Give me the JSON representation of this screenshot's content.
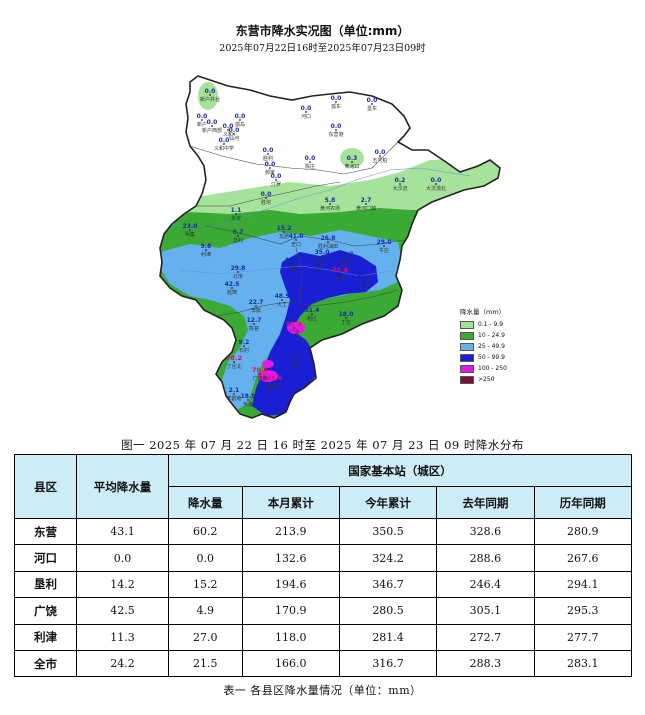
{
  "map": {
    "title": "东营市降水实况图（单位:mm）",
    "subtitle": "2025年07月22日16时至2025年07月23日09时",
    "stations": [
      {
        "value": "0.0",
        "name": "新户井台"
      },
      {
        "value": "0.0",
        "name": "新户"
      },
      {
        "value": "0.0",
        "name": "新户西部"
      },
      {
        "value": "0.0",
        "name": "义和"
      },
      {
        "value": "0.0",
        "name": "义和中学"
      },
      {
        "value": "0.0",
        "name": "孤岛"
      },
      {
        "value": "0.0",
        "name": "仙河"
      },
      {
        "value": "0.0",
        "name": "河口"
      },
      {
        "value": "0.0",
        "name": "孤东"
      },
      {
        "value": "0.0",
        "name": "东营港"
      },
      {
        "value": "0.0",
        "name": "垦东"
      },
      {
        "value": "0.3",
        "name": "黄河口"
      },
      {
        "value": "0.0",
        "name": "五号桩"
      },
      {
        "value": "0.2",
        "name": "大汶流"
      },
      {
        "value": "0.0",
        "name": "大汶流北"
      },
      {
        "value": "0.0",
        "name": "胜利"
      },
      {
        "value": "0.0",
        "name": "郝家"
      },
      {
        "value": "0.0",
        "name": "汀罗"
      },
      {
        "value": "0.0",
        "name": "陈庄"
      },
      {
        "value": "0.0",
        "name": "胜坨"
      },
      {
        "value": "1.1",
        "name": "永安"
      },
      {
        "value": "0.7",
        "name": "垦利"
      },
      {
        "value": "5.8",
        "name": "黄河农场"
      },
      {
        "value": "2.7",
        "name": "黄河口镇"
      },
      {
        "value": "15.2",
        "name": "龙居"
      },
      {
        "value": "41.0",
        "name": "史口"
      },
      {
        "value": "26.8",
        "name": "胜利油田"
      },
      {
        "value": "29.0",
        "name": "牛庄"
      },
      {
        "value": "35.0",
        "name": "东营"
      },
      {
        "value": "60.2",
        "name": "东营区"
      },
      {
        "value": "29.0",
        "name": "六户"
      },
      {
        "value": "71.4",
        "name": "东城"
      },
      {
        "value": "31.8",
        "name": "广利"
      },
      {
        "value": "46.9",
        "name": "辛店"
      },
      {
        "value": "29.8",
        "name": "北宋"
      },
      {
        "value": "9.8",
        "name": "利津"
      },
      {
        "value": "23.0",
        "name": "明集"
      },
      {
        "value": "42.5",
        "name": "盐窝"
      },
      {
        "value": "51.4",
        "name": "稻庄"
      },
      {
        "value": "18.0",
        "name": "丁庄"
      },
      {
        "value": "48.5",
        "name": "大王"
      },
      {
        "value": "22.7",
        "name": "李鹊"
      },
      {
        "value": "12.7",
        "name": "陈官"
      },
      {
        "value": "81.2",
        "name": "广饶"
      },
      {
        "value": "59.9",
        "name": "花官"
      },
      {
        "value": "9.2",
        "name": "石村"
      },
      {
        "value": "78.2",
        "name": "丁庄北"
      },
      {
        "value": "101.6",
        "name": "稻庄南"
      },
      {
        "value": "70.4",
        "name": "广饶南"
      },
      {
        "value": "18.9",
        "name": "英雄"
      },
      {
        "value": "2.1",
        "name": "李鹊南"
      }
    ],
    "legend": {
      "title": "降水量（mm）",
      "items": [
        {
          "label": "0.1 - 9.9",
          "color": "#a6e39a"
        },
        {
          "label": "10 - 24.9",
          "color": "#3aaa35"
        },
        {
          "label": "25 - 49.9",
          "color": "#64b1ee"
        },
        {
          "label": "50 - 99.9",
          "color": "#1a1fd4"
        },
        {
          "label": "100 - 250",
          "color": "#e618e6"
        },
        {
          "label": ">250",
          "color": "#7a0f3e"
        }
      ]
    },
    "caption": "图一 2025 年 07 月 22 日 16 时至 2025 年 07 月 23 日 09 时降水分布"
  },
  "table": {
    "headers": {
      "county": "县区",
      "avg": "平均降水量",
      "group": "国家基本站（城区）",
      "rain": "降水量",
      "month": "本月累计",
      "year": "今年累计",
      "last_year": "去年同期",
      "history": "历年同期"
    },
    "rows": [
      {
        "county": "东营",
        "avg": "43.1",
        "rain": "60.2",
        "month": "213.9",
        "year": "350.5",
        "last_year": "328.6",
        "history": "280.9"
      },
      {
        "county": "河口",
        "avg": "0.0",
        "rain": "0.0",
        "month": "132.6",
        "year": "324.2",
        "last_year": "288.6",
        "history": "267.6"
      },
      {
        "county": "垦利",
        "avg": "14.2",
        "rain": "15.2",
        "month": "194.6",
        "year": "346.7",
        "last_year": "246.4",
        "history": "294.1"
      },
      {
        "county": "广饶",
        "avg": "42.5",
        "rain": "4.9",
        "month": "170.9",
        "year": "280.5",
        "last_year": "305.1",
        "history": "295.3"
      },
      {
        "county": "利津",
        "avg": "11.3",
        "rain": "27.0",
        "month": "118.0",
        "year": "281.4",
        "last_year": "272.7",
        "history": "277.7"
      },
      {
        "county": "全市",
        "avg": "24.2",
        "rain": "21.5",
        "month": "166.0",
        "year": "316.7",
        "last_year": "288.3",
        "history": "283.1"
      }
    ],
    "caption": "表一 各县区降水量情况（单位：mm）"
  }
}
